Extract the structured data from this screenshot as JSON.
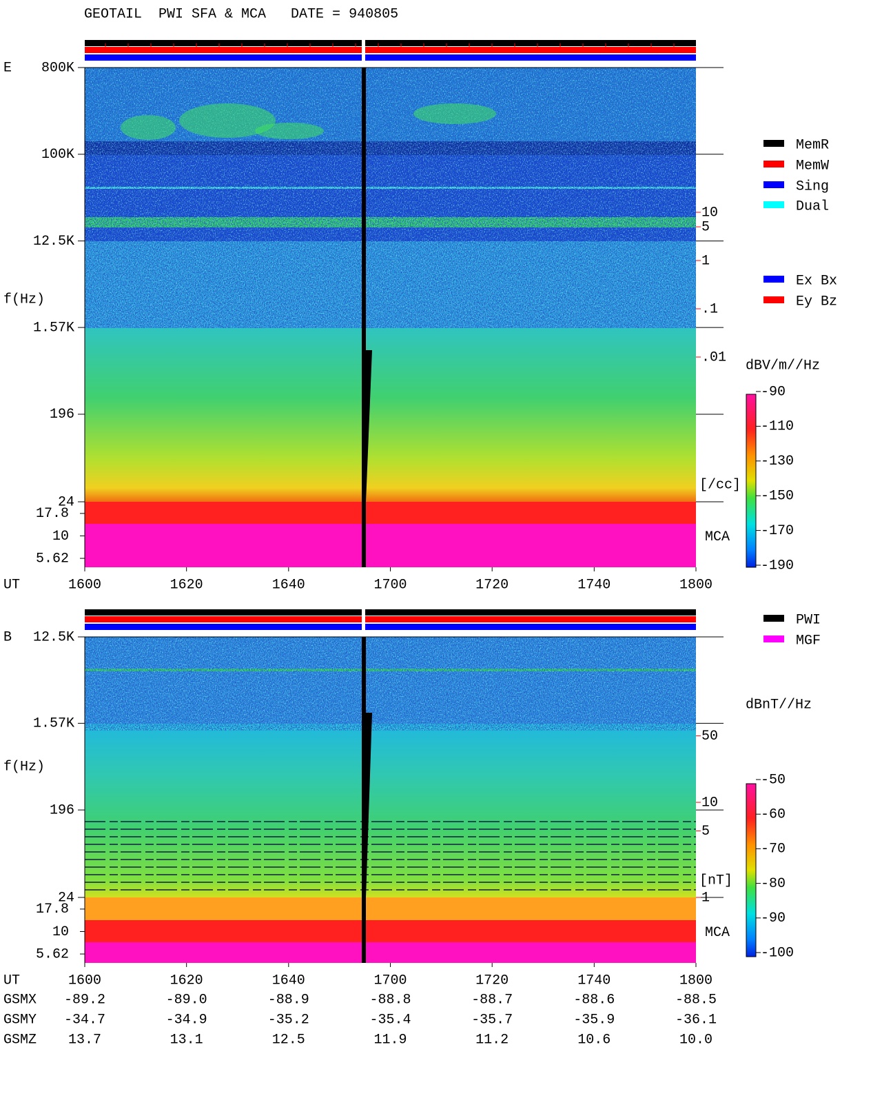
{
  "title": "GEOTAIL  PWI SFA & MCA   DATE = 940805",
  "status_legend": [
    {
      "name": "MemR",
      "color": "#000000"
    },
    {
      "name": "MemW",
      "color": "#ff0000"
    },
    {
      "name": "Sing",
      "color": "#0000ff"
    },
    {
      "name": "Dual",
      "color": "#00ffff"
    }
  ],
  "component_legend": [
    {
      "name": "Ex Bx",
      "color": "#0000ff"
    },
    {
      "name": "Ey Bz",
      "color": "#ff0000"
    }
  ],
  "source_legend": [
    {
      "name": "PWI",
      "color": "#000000"
    },
    {
      "name": "MGF",
      "color": "#ff00ff"
    }
  ],
  "chart_data": [
    {
      "type": "spectrogram",
      "panel": "E",
      "y_label": "f(Hz)",
      "x_label": "UT",
      "log_y": true,
      "ylim": [
        24,
        800000
      ],
      "yticks": [
        {
          "value": 800000,
          "label": "800K"
        },
        {
          "value": 100000,
          "label": "100K"
        },
        {
          "value": 12500,
          "label": "12.5K"
        },
        {
          "value": 1570,
          "label": "1.57K"
        },
        196,
        24
      ],
      "mca_label": "MCA",
      "mca_ylim": [
        4.47,
        24
      ],
      "mca_yticks": [
        17.8,
        10,
        5.62
      ],
      "xlim": [
        16,
        18
      ],
      "xticks": [
        {
          "value": 16,
          "label": "1600"
        },
        {
          "value": 16.333,
          "label": "1620"
        },
        {
          "value": 16.667,
          "label": "1640"
        },
        {
          "value": 17,
          "label": "1700"
        },
        {
          "value": 17.333,
          "label": "1720"
        },
        {
          "value": 17.667,
          "label": "1740"
        },
        {
          "value": 18,
          "label": "1800"
        }
      ],
      "y2lim": [
        1e-05,
        10000
      ],
      "y2ticks": [
        10,
        5,
        1,
        {
          "value": 0.1,
          "label": ".1"
        },
        {
          "value": 0.01,
          "label": ".01"
        }
      ],
      "y2_label": "[/cc]",
      "y2_color": "#ff0000",
      "colorbar": {
        "label": "dBV/m//Hz",
        "lim": [
          -190,
          -90
        ],
        "ticks": [
          -90,
          -110,
          -130,
          -150,
          -170,
          -190
        ]
      }
    },
    {
      "type": "spectrogram",
      "panel": "B",
      "y_label": "f(Hz)",
      "x_label": "UT",
      "log_y": true,
      "ylim": [
        24,
        12500
      ],
      "yticks": [
        {
          "value": 12500,
          "label": "12.5K"
        },
        {
          "value": 1570,
          "label": "1.57K"
        },
        196,
        24
      ],
      "mca_label": "MCA",
      "mca_ylim": [
        4.47,
        24
      ],
      "mca_yticks": [
        17.8,
        10,
        5.62
      ],
      "xlim": [
        16,
        18
      ],
      "xticks": [
        {
          "value": 16,
          "label": "1600"
        },
        {
          "value": 16.333,
          "label": "1620"
        },
        {
          "value": 16.667,
          "label": "1640"
        },
        {
          "value": 17,
          "label": "1700"
        },
        {
          "value": 17.333,
          "label": "1720"
        },
        {
          "value": 17.667,
          "label": "1740"
        },
        {
          "value": 18,
          "label": "1800"
        }
      ],
      "y2lim": [
        1,
        550
      ],
      "y2ticks": [
        50,
        10,
        5,
        1
      ],
      "y2_label": "[nT]",
      "y2_color": "#ff0000",
      "colorbar": {
        "label": "dBnT//Hz",
        "lim": [
          -100,
          -50
        ],
        "ticks": [
          -50,
          -60,
          -70,
          -80,
          -90,
          -100
        ]
      }
    }
  ],
  "orbit": {
    "rows": [
      {
        "name": "GSMX",
        "values": [
          "-89.2",
          "-89.0",
          "-88.9",
          "-88.8",
          "-88.7",
          "-88.6",
          "-88.5"
        ]
      },
      {
        "name": "GSMY",
        "values": [
          "-34.7",
          "-34.9",
          "-35.2",
          "-35.4",
          "-35.7",
          "-35.9",
          "-36.1"
        ]
      },
      {
        "name": "GSMZ",
        "values": [
          "13.7",
          "13.1",
          "12.5",
          "11.9",
          "11.2",
          "10.6",
          "10.0"
        ]
      }
    ]
  }
}
